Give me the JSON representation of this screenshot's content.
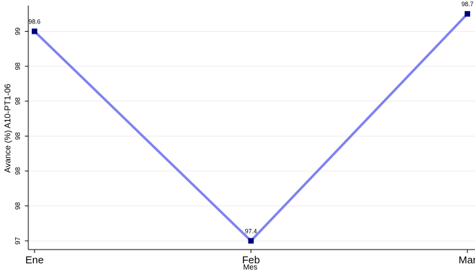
{
  "chart_data": {
    "type": "line",
    "title": "",
    "xlabel": "Mes",
    "ylabel": "Avance (%) A10-PT1-06",
    "categories": [
      "Ene",
      "Feb",
      "Mar"
    ],
    "series": [
      {
        "values": [
          98.6,
          97.4,
          98.7
        ],
        "data_labels": [
          "98.6",
          "97.4",
          "98.7"
        ],
        "line_color": "#8080f0",
        "marker_color": "#000080",
        "marker": "square"
      }
    ],
    "ylim": [
      97.35,
      98.74
    ],
    "yticks": [
      97.4,
      97.6,
      97.8,
      98.0,
      98.2,
      98.4,
      98.6,
      98.8
    ],
    "ytick_labels": [
      "97",
      "98",
      "98",
      "98",
      "98",
      "98",
      "99",
      "99"
    ],
    "grid": true,
    "legend": "none"
  }
}
